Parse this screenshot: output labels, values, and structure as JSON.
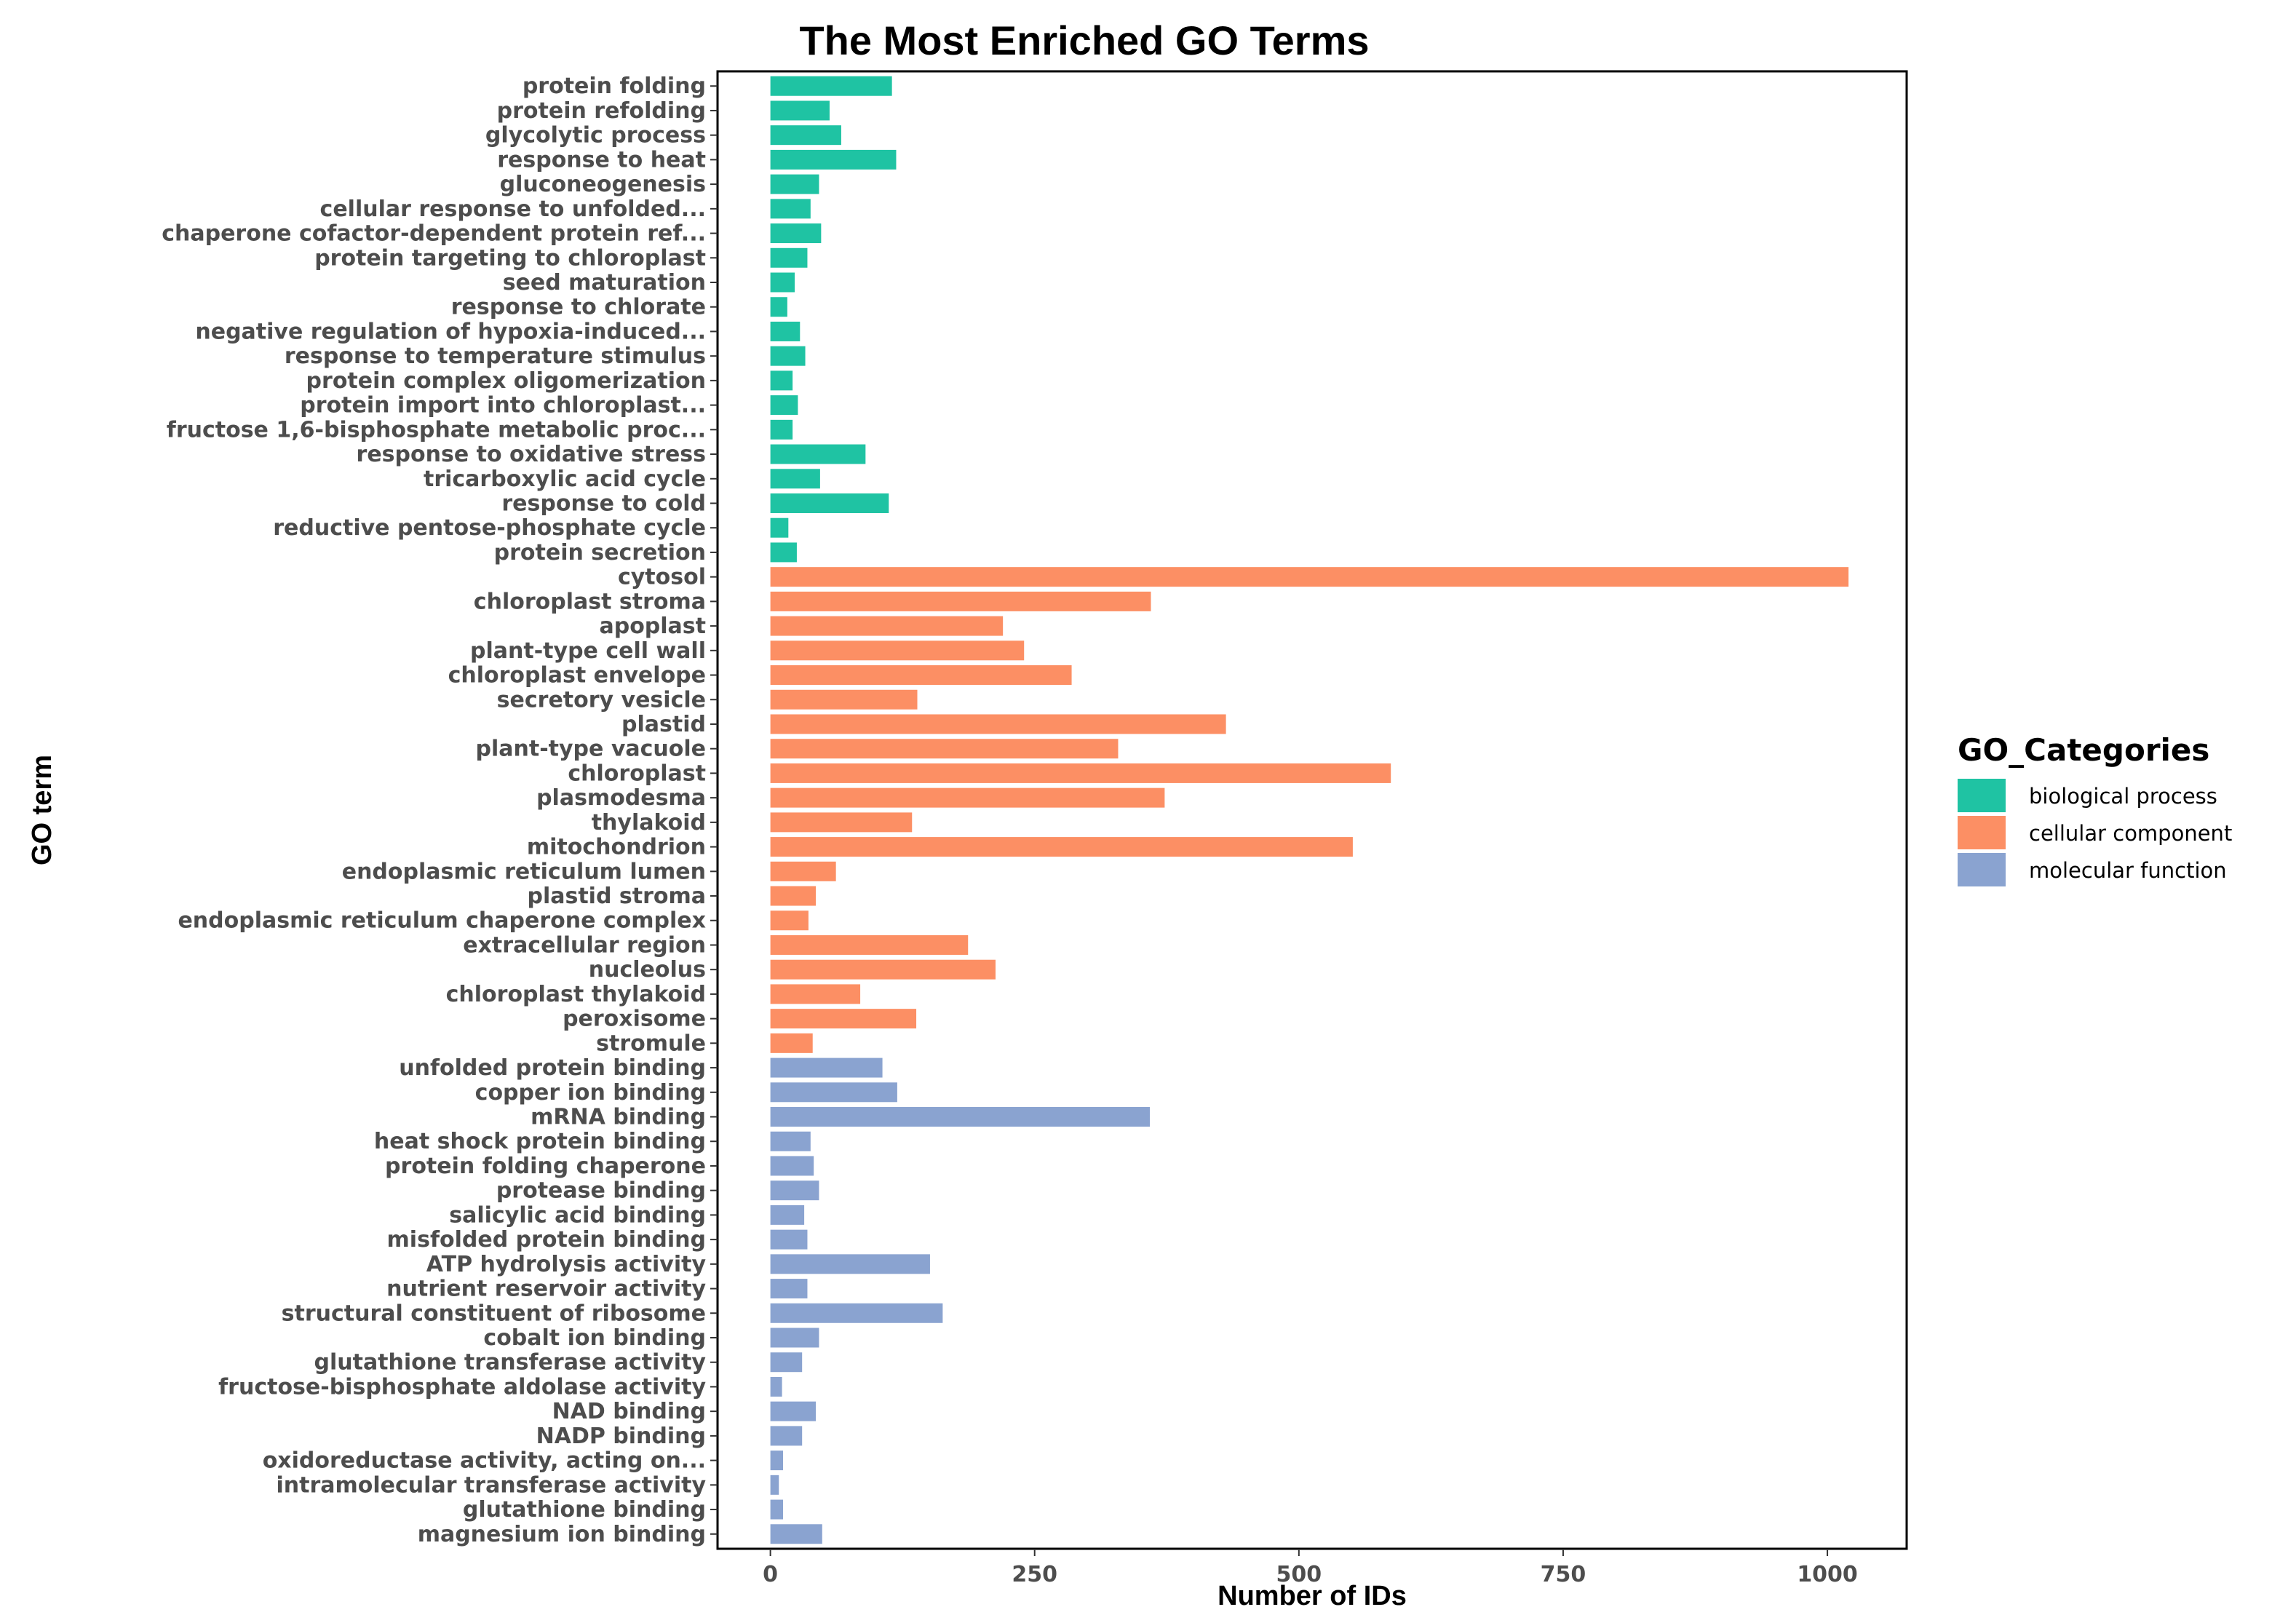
{
  "chart_data": {
    "type": "bar",
    "orientation": "horizontal",
    "title": "The Most Enriched GO Terms",
    "xlabel": "Number of IDs",
    "ylabel": "GO term",
    "xlim": [
      -50,
      1075
    ],
    "xticks": [
      0,
      250,
      500,
      750,
      1000
    ],
    "grid": false,
    "legend": {
      "title": "GO_Categories",
      "position": "right",
      "entries": [
        {
          "key": "bp",
          "label": "biological process",
          "color": "#1FC3A3"
        },
        {
          "key": "cc",
          "label": "cellular component",
          "color": "#FC8F64"
        },
        {
          "key": "mf",
          "label": "molecular function",
          "color": "#8AA3D0"
        }
      ]
    },
    "categories": [
      "protein folding",
      "protein refolding",
      "glycolytic process",
      "response to heat",
      "gluconeogenesis",
      "cellular response to unfolded...",
      "chaperone cofactor-dependent protein ref...",
      "protein targeting to chloroplast",
      "seed maturation",
      "response to chlorate",
      "negative regulation of hypoxia-induced...",
      "response to temperature stimulus",
      "protein complex oligomerization",
      "protein import into chloroplast...",
      "fructose 1,6-bisphosphate metabolic proc...",
      "response to oxidative stress",
      "tricarboxylic acid cycle",
      "response to cold",
      "reductive pentose-phosphate cycle",
      "protein secretion",
      "cytosol",
      "chloroplast stroma",
      "apoplast",
      "plant-type cell wall",
      "chloroplast envelope",
      "secretory vesicle",
      "plastid",
      "plant-type vacuole",
      "chloroplast",
      "plasmodesma",
      "thylakoid",
      "mitochondrion",
      "endoplasmic reticulum lumen",
      "plastid stroma",
      "endoplasmic reticulum chaperone complex",
      "extracellular region",
      "nucleolus",
      "chloroplast thylakoid",
      "peroxisome",
      "stromule",
      "unfolded protein binding",
      "copper ion binding",
      "mRNA binding",
      "heat shock protein binding",
      "protein folding chaperone",
      "protease binding",
      "salicylic acid binding",
      "misfolded protein binding",
      "ATP hydrolysis activity",
      "nutrient reservoir activity",
      "structural constituent of ribosome",
      "cobalt ion binding",
      "glutathione transferase activity",
      "fructose-bisphosphate aldolase activity",
      "NAD binding",
      "NADP binding",
      "oxidoreductase activity, acting on...",
      "intramolecular transferase activity",
      "glutathione binding",
      "magnesium ion binding"
    ],
    "values": [
      115,
      56,
      67,
      119,
      46,
      38,
      48,
      35,
      23,
      16,
      28,
      33,
      21,
      26,
      21,
      90,
      47,
      112,
      17,
      25,
      1020,
      360,
      220,
      240,
      285,
      139,
      431,
      329,
      587,
      373,
      134,
      551,
      62,
      43,
      36,
      187,
      213,
      85,
      138,
      40,
      106,
      120,
      359,
      38,
      41,
      46,
      32,
      35,
      151,
      35,
      163,
      46,
      30,
      11,
      43,
      30,
      12,
      8,
      12,
      49
    ],
    "groups": [
      "bp",
      "bp",
      "bp",
      "bp",
      "bp",
      "bp",
      "bp",
      "bp",
      "bp",
      "bp",
      "bp",
      "bp",
      "bp",
      "bp",
      "bp",
      "bp",
      "bp",
      "bp",
      "bp",
      "bp",
      "cc",
      "cc",
      "cc",
      "cc",
      "cc",
      "cc",
      "cc",
      "cc",
      "cc",
      "cc",
      "cc",
      "cc",
      "cc",
      "cc",
      "cc",
      "cc",
      "cc",
      "cc",
      "cc",
      "cc",
      "mf",
      "mf",
      "mf",
      "mf",
      "mf",
      "mf",
      "mf",
      "mf",
      "mf",
      "mf",
      "mf",
      "mf",
      "mf",
      "mf",
      "mf",
      "mf",
      "mf",
      "mf",
      "mf",
      "mf"
    ]
  }
}
